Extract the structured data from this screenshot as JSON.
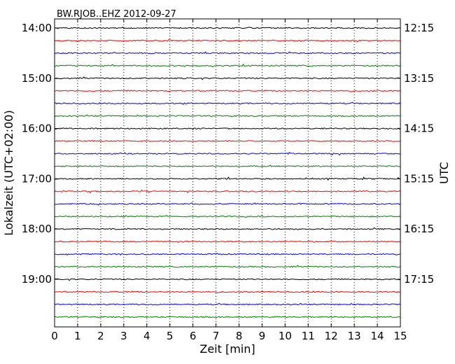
{
  "chart_data": {
    "type": "line",
    "title": "BW.RJOB..EHZ 2012-09-27",
    "xlabel": "Zeit  [min]",
    "ylabel_left": "Lokalzeit (UTC+02:00)",
    "ylabel_right": "UTC",
    "xlim": [
      0,
      15
    ],
    "x_ticks": [
      0,
      1,
      2,
      3,
      4,
      5,
      6,
      7,
      8,
      9,
      10,
      11,
      12,
      13,
      14,
      15
    ],
    "left_tick_labels": [
      "14:00",
      "15:00",
      "16:00",
      "17:00",
      "18:00",
      "19:00"
    ],
    "right_tick_labels": [
      "12:15",
      "13:15",
      "14:15",
      "15:15",
      "16:15",
      "17:15"
    ],
    "grid": "vertical dotted",
    "trace_interval_min": 15,
    "trace_count": 24,
    "trace_colors": [
      "#000000",
      "#ff0000",
      "#0000ff",
      "#008000"
    ],
    "traces_local_start": [
      "14:00",
      "14:15",
      "14:30",
      "14:45",
      "15:00",
      "15:15",
      "15:30",
      "15:45",
      "16:00",
      "16:15",
      "16:30",
      "16:45",
      "17:00",
      "17:15",
      "17:30",
      "17:45",
      "18:00",
      "18:15",
      "18:30",
      "18:45",
      "19:00",
      "19:15",
      "19:30",
      "19:45"
    ]
  }
}
